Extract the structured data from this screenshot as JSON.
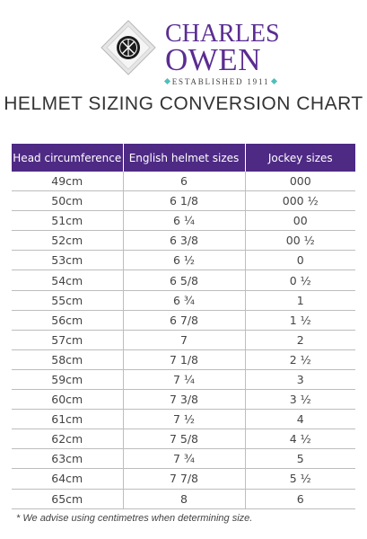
{
  "brand": {
    "name_line1": "CHARLES",
    "name_line2": "OWEN",
    "established": "ESTABLISHED 1911",
    "primary_color": "#5a2d91",
    "accent_color": "#4fbfb9"
  },
  "title": "HELMET SIZING CONVERSION CHART",
  "table": {
    "headers": [
      "Head circumference",
      "English helmet sizes",
      "Jockey sizes"
    ],
    "header_color": "#4e2a84",
    "rows": [
      [
        "49cm",
        "6",
        "000"
      ],
      [
        "50cm",
        "6 1/8",
        "000 ½"
      ],
      [
        "51cm",
        "6 ¼",
        "00"
      ],
      [
        "52cm",
        "6 3/8",
        "00 ½"
      ],
      [
        "53cm",
        "6 ½",
        "0"
      ],
      [
        "54cm",
        "6 5/8",
        "0  ½"
      ],
      [
        "55cm",
        "6 ¾",
        "1"
      ],
      [
        "56cm",
        "6 7/8",
        "1 ½"
      ],
      [
        "57cm",
        "7",
        "2"
      ],
      [
        "58cm",
        "7 1/8",
        "2 ½"
      ],
      [
        "59cm",
        "7 ¼",
        "3"
      ],
      [
        "60cm",
        "7 3/8",
        "3 ½"
      ],
      [
        "61cm",
        "7 ½",
        "4"
      ],
      [
        "62cm",
        "7 5/8",
        "4 ½"
      ],
      [
        "63cm",
        "7 ¾",
        "5"
      ],
      [
        "64cm",
        "7 7/8",
        "5 ½"
      ],
      [
        "65cm",
        "8",
        "6"
      ]
    ]
  },
  "footnote": "* We advise using centimetres when determining size."
}
